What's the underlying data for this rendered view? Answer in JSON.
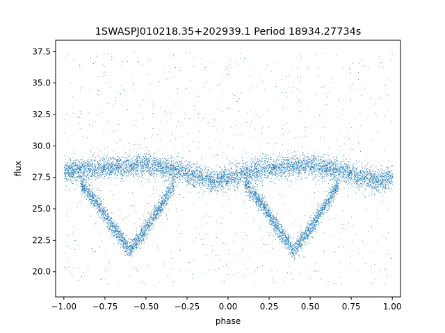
{
  "chart_data": {
    "type": "scatter",
    "title": "1SWASPJ010218.35+202939.1 Period 18934.27734s",
    "xlabel": "phase",
    "ylabel": "flux",
    "xlim": [
      -1.05,
      1.05
    ],
    "ylim": [
      18.0,
      38.4
    ],
    "xticks": [
      -1.0,
      -0.75,
      -0.5,
      -0.25,
      0.0,
      0.25,
      0.5,
      0.75,
      1.0
    ],
    "xtick_labels": [
      "−1.00",
      "−0.75",
      "−0.50",
      "−0.25",
      "0.00",
      "0.25",
      "0.50",
      "0.75",
      "1.00"
    ],
    "yticks": [
      20.0,
      22.5,
      25.0,
      27.5,
      30.0,
      32.5,
      35.0,
      37.5
    ],
    "ytick_labels": [
      "20.0",
      "22.5",
      "25.0",
      "27.5",
      "30.0",
      "32.5",
      "35.0",
      "37.5"
    ],
    "grid": false,
    "marker_color": "#1f77b4",
    "description_of_points": "dense phase-folded light curve; baseline flux ~27.5-28.5 across phase -1 to 1, shallow dips to ~27 near phase -0.1 and 0.9, deep eclipse branches dropping to ~21.5 near phase -0.6 and 0.4",
    "series": [
      {
        "name": "",
        "baseline": [
          [
            -1.0,
            28.0
          ],
          [
            -0.75,
            28.3
          ],
          [
            -0.5,
            28.5
          ],
          [
            -0.3,
            28.0
          ],
          [
            -0.1,
            27.2
          ],
          [
            0.0,
            27.5
          ],
          [
            0.25,
            28.3
          ],
          [
            0.5,
            28.5
          ],
          [
            0.7,
            28.0
          ],
          [
            0.9,
            27.2
          ],
          [
            1.0,
            27.5
          ]
        ],
        "eclipse_branch": [
          [
            -0.9,
            27.0
          ],
          [
            -0.8,
            25.5
          ],
          [
            -0.7,
            23.5
          ],
          [
            -0.6,
            21.7
          ],
          [
            -0.5,
            23.5
          ],
          [
            -0.4,
            25.5
          ],
          [
            -0.33,
            27.0
          ],
          [
            0.1,
            27.0
          ],
          [
            0.2,
            25.5
          ],
          [
            0.3,
            23.5
          ],
          [
            0.4,
            21.7
          ],
          [
            0.5,
            23.5
          ],
          [
            0.6,
            25.5
          ],
          [
            0.67,
            27.0
          ]
        ]
      }
    ]
  }
}
